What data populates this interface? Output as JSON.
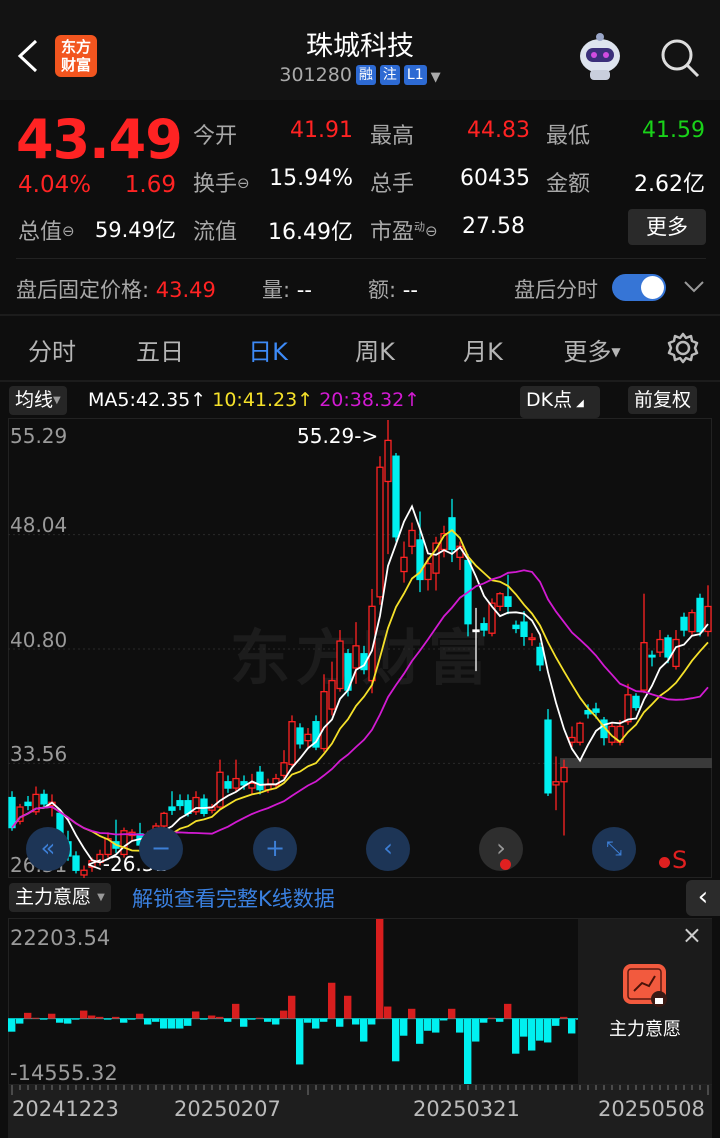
{
  "header": {
    "title": "珠城科技",
    "code": "301280",
    "badges": [
      "融",
      "注",
      "L1"
    ],
    "logo_text_1": "东方",
    "logo_text_2": "财富"
  },
  "quote": {
    "price": "43.49",
    "change_pct": "4.04%",
    "change": "1.69",
    "open_label": "今开",
    "open": "41.91",
    "high_label": "最高",
    "high": "44.83",
    "low_label": "最低",
    "low": "41.59",
    "turnover_label": "换手",
    "turnover": "15.94%",
    "volume_label": "总手",
    "volume": "60435",
    "amount_label": "金额",
    "amount": "2.62亿",
    "mktcap_label": "总值",
    "mktcap": "59.49亿",
    "float_label": "流值",
    "float": "16.49亿",
    "pe_label": "市盈",
    "pe_sup": "动",
    "pe": "27.58",
    "more_label": "更多"
  },
  "after_hours": {
    "price_label": "盘后固定价格:",
    "price": "43.49",
    "vol_label": "量:",
    "vol": "--",
    "amt_label": "额:",
    "amt": "--",
    "toggle_label": "盘后分时",
    "toggle_on": true
  },
  "tabs": [
    "分时",
    "五日",
    "日K",
    "周K",
    "月K",
    "更多"
  ],
  "active_tab": "日K",
  "ma_bar": {
    "selector": "均线",
    "ma5": "MA5:42.35↑",
    "ma10": "10:41.23↑",
    "ma20": "20:38.32↑",
    "dk_label": "DK点",
    "adjust_label": "前复权"
  },
  "colors": {
    "up": "#ff2323",
    "down": "#00f0f0",
    "ma5": "#ffffff",
    "ma10": "#f5e12a",
    "ma20": "#d21ad2",
    "accent": "#3d8af7"
  },
  "watermark": "东方财富",
  "main_chart": {
    "y_labels": [
      "55.29",
      "48.04",
      "40.80",
      "33.56",
      "26.31"
    ],
    "max_marker": "55.29->",
    "min_marker": "<-26.31",
    "candles": [
      [
        31.4,
        31.8,
        29.3,
        29.5
      ],
      [
        29.9,
        31.0,
        29.7,
        30.8
      ],
      [
        31.1,
        31.5,
        30.6,
        30.9
      ],
      [
        30.5,
        32.1,
        30.3,
        31.6
      ],
      [
        31.6,
        31.9,
        30.8,
        31.0
      ],
      [
        30.9,
        31.6,
        30.2,
        31.1
      ],
      [
        30.4,
        30.6,
        28.2,
        28.5
      ],
      [
        28.6,
        29.3,
        27.4,
        27.7
      ],
      [
        27.7,
        28.0,
        26.6,
        26.8
      ],
      [
        26.5,
        27.1,
        26.31,
        26.8
      ],
      [
        27.0,
        27.6,
        26.7,
        27.4
      ],
      [
        27.3,
        28.1,
        27.1,
        27.8
      ],
      [
        27.8,
        29.2,
        27.6,
        28.8
      ],
      [
        28.6,
        30.0,
        27.9,
        28.2
      ],
      [
        27.8,
        29.5,
        27.6,
        29.3
      ],
      [
        29.0,
        29.4,
        28.6,
        29.2
      ],
      [
        29.1,
        29.8,
        28.3,
        28.4
      ],
      [
        28.8,
        29.3,
        28.6,
        28.9
      ],
      [
        28.8,
        29.8,
        28.6,
        29.6
      ],
      [
        29.6,
        30.5,
        29.3,
        30.4
      ],
      [
        30.8,
        31.8,
        30.3,
        30.6
      ],
      [
        31.2,
        31.6,
        30.6,
        30.9
      ],
      [
        31.2,
        31.6,
        30.2,
        30.4
      ],
      [
        30.5,
        31.8,
        30.3,
        31.4
      ],
      [
        31.3,
        31.6,
        30.2,
        30.4
      ],
      [
        30.6,
        31.0,
        30.4,
        30.8
      ],
      [
        30.8,
        33.8,
        30.6,
        33.0
      ],
      [
        32.4,
        32.8,
        31.7,
        32.0
      ],
      [
        32.0,
        33.8,
        31.8,
        32.6
      ],
      [
        32.4,
        32.8,
        31.9,
        32.2
      ],
      [
        32.0,
        32.9,
        31.6,
        32.3
      ],
      [
        33.0,
        33.4,
        31.6,
        31.9
      ],
      [
        31.9,
        32.6,
        31.7,
        32.2
      ],
      [
        32.2,
        32.9,
        32.0,
        32.6
      ],
      [
        32.8,
        34.4,
        32.6,
        33.6
      ],
      [
        33.5,
        36.6,
        33.4,
        36.2
      ],
      [
        35.8,
        36.1,
        34.5,
        34.8
      ],
      [
        35.0,
        35.8,
        34.6,
        35.4
      ],
      [
        36.2,
        36.6,
        34.4,
        34.6
      ],
      [
        34.5,
        39.2,
        34.3,
        38.1
      ],
      [
        37.0,
        40.0,
        36.6,
        38.8
      ],
      [
        38.3,
        42.0,
        38.1,
        41.3
      ],
      [
        40.5,
        40.8,
        37.8,
        38.2
      ],
      [
        39.6,
        42.5,
        38.6,
        41.0
      ],
      [
        40.5,
        41.0,
        39.2,
        39.5
      ],
      [
        38.8,
        44.6,
        38.0,
        43.5
      ],
      [
        44.1,
        53.0,
        43.6,
        52.3
      ],
      [
        51.4,
        55.29,
        46.8,
        54.0
      ],
      [
        53.0,
        53.2,
        47.6,
        47.9
      ],
      [
        45.7,
        47.6,
        45.0,
        46.6
      ],
      [
        47.3,
        48.8,
        46.8,
        48.3
      ],
      [
        47.7,
        49.5,
        44.4,
        45.2
      ],
      [
        45.2,
        46.6,
        44.5,
        46.2
      ],
      [
        45.6,
        47.9,
        44.5,
        47.5
      ],
      [
        47.1,
        48.6,
        46.6,
        48.1
      ],
      [
        49.1,
        50.3,
        46.3,
        47.1
      ],
      [
        46.6,
        47.6,
        45.8,
        47.3
      ],
      [
        46.4,
        46.8,
        41.6,
        42.4
      ],
      [
        42.0,
        43.4,
        39.4,
        42.0
      ],
      [
        42.4,
        42.8,
        41.6,
        42.0
      ],
      [
        41.8,
        44.0,
        41.6,
        43.7
      ],
      [
        43.5,
        44.4,
        43.2,
        44.3
      ],
      [
        44.1,
        45.5,
        43.0,
        43.5
      ],
      [
        42.3,
        42.6,
        41.8,
        42.1
      ],
      [
        42.5,
        43.2,
        41.0,
        41.6
      ],
      [
        41.4,
        41.8,
        41.0,
        41.5
      ],
      [
        40.9,
        41.2,
        39.4,
        39.8
      ],
      [
        36.3,
        37.0,
        31.5,
        31.7
      ],
      [
        32.2,
        34.0,
        30.6,
        32.4
      ],
      [
        32.4,
        33.8,
        29.0,
        33.3
      ],
      [
        34.9,
        35.9,
        34.6,
        35.2
      ],
      [
        34.9,
        36.2,
        34.7,
        36.1
      ],
      [
        36.9,
        37.3,
        36.4,
        36.7
      ],
      [
        37.0,
        37.4,
        36.4,
        36.8
      ],
      [
        36.3,
        36.5,
        34.7,
        35.2
      ],
      [
        34.9,
        36.1,
        34.7,
        35.9
      ],
      [
        34.9,
        36.3,
        34.7,
        35.9
      ],
      [
        36.2,
        38.6,
        36.0,
        37.9
      ],
      [
        37.8,
        38.0,
        36.9,
        37.1
      ],
      [
        38.2,
        44.3,
        38.0,
        41.2
      ],
      [
        40.4,
        40.7,
        39.7,
        40.3
      ],
      [
        40.6,
        42.0,
        40.3,
        41.4
      ],
      [
        41.5,
        41.7,
        39.9,
        40.3
      ],
      [
        39.7,
        42.0,
        39.5,
        41.4
      ],
      [
        42.8,
        43.1,
        41.6,
        42.0
      ],
      [
        41.9,
        43.3,
        41.7,
        43.1
      ],
      [
        44.0,
        44.3,
        41.6,
        41.9
      ],
      [
        41.91,
        44.83,
        41.59,
        43.49
      ]
    ],
    "y_range": [
      26.31,
      55.29
    ],
    "nav_buttons": [
      "scroll-left-fast",
      "zoom-out",
      "zoom-in",
      "prev",
      "next",
      "fullscreen"
    ],
    "signal_label": "S"
  },
  "sub_chart": {
    "selector": "主力意愿",
    "unlock_link": "解锁查看完整K线数据",
    "max_label": "22203.54",
    "min_label": "-14555.32",
    "y_range": [
      -14555.32,
      22203.54
    ],
    "values": [
      -2900,
      -1100,
      1300,
      200,
      -200,
      1100,
      -900,
      -1100,
      -200,
      1800,
      700,
      400,
      -200,
      400,
      -900,
      -200,
      1100,
      -1300,
      -700,
      -2200,
      -2200,
      -2200,
      -1600,
      1600,
      -200,
      700,
      400,
      -700,
      3300,
      -1800,
      -200,
      200,
      -700,
      -1300,
      1800,
      5100,
      -10200,
      -900,
      -2200,
      -700,
      8000,
      -1800,
      5100,
      -1300,
      -5100,
      -1300,
      22203.54,
      2700,
      -9500,
      -3800,
      2200,
      -5600,
      -2700,
      -3100,
      -400,
      2200,
      -3100,
      -14555.32,
      -5100,
      -900,
      200,
      -700,
      3300,
      -7800,
      -4000,
      -7100,
      -4900,
      -5300,
      -1600,
      400,
      -3300,
      -200
    ],
    "locked_panel_label": "主力意愿"
  },
  "date_axis": [
    "20241223",
    "20250207",
    "20250321",
    "20250508"
  ]
}
